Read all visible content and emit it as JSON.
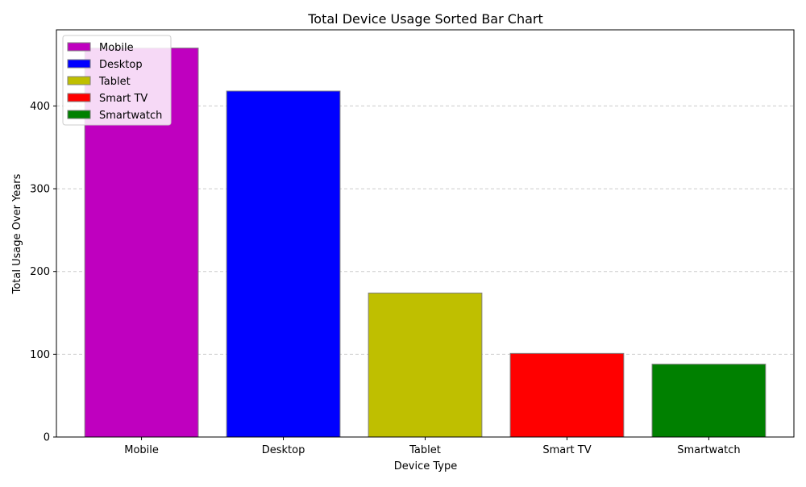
{
  "chart_data": {
    "type": "bar",
    "title": "Total Device Usage Sorted Bar Chart",
    "xlabel": "Device Type",
    "ylabel": "Total Usage Over Years",
    "categories": [
      "Mobile",
      "Desktop",
      "Tablet",
      "Smart TV",
      "Smartwatch"
    ],
    "values": [
      470,
      418,
      174,
      101,
      88
    ],
    "colors": [
      "#bf00bf",
      "#0000ff",
      "#bfbf00",
      "#ff0000",
      "#008000"
    ],
    "ylim": [
      0,
      492
    ],
    "yticks": [
      0,
      100,
      200,
      300,
      400
    ],
    "grid": "y-dashed",
    "legend": {
      "placement": "top-left",
      "entries": [
        "Mobile",
        "Desktop",
        "Tablet",
        "Smart TV",
        "Smartwatch"
      ]
    }
  }
}
